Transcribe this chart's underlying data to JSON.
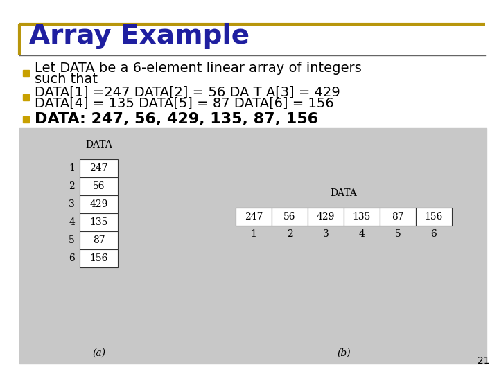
{
  "title": "Array Example",
  "title_color": "#1F1FA0",
  "title_fontsize": 28,
  "bg_color": "#FFFFFF",
  "border_color": "#B8960C",
  "bullet1_line1": "Let DATA be a 6-element linear array of integers",
  "bullet1_line2": "such that",
  "bullet2_line1": "DATA[1] =247 DATA[2] = 56 DA T A[3] = 429",
  "bullet2_line2": "DATA[4] = 135 DATA[5] = 87 DATA[6] = 156",
  "bullet3": "DATA: 247, 56, 429, 135, 87, 156",
  "bullet_color": "#000000",
  "bullet_square_color": "#C8A000",
  "data_values": [
    247,
    56,
    429,
    135,
    87,
    156
  ],
  "data_indices": [
    1,
    2,
    3,
    4,
    5,
    6
  ],
  "table_bg": "#FFFFFF",
  "image_bg": "#C8C8C8",
  "page_number": "21",
  "body_fontsize": 14,
  "bold_fontsize": 16,
  "table_fontsize": 10
}
